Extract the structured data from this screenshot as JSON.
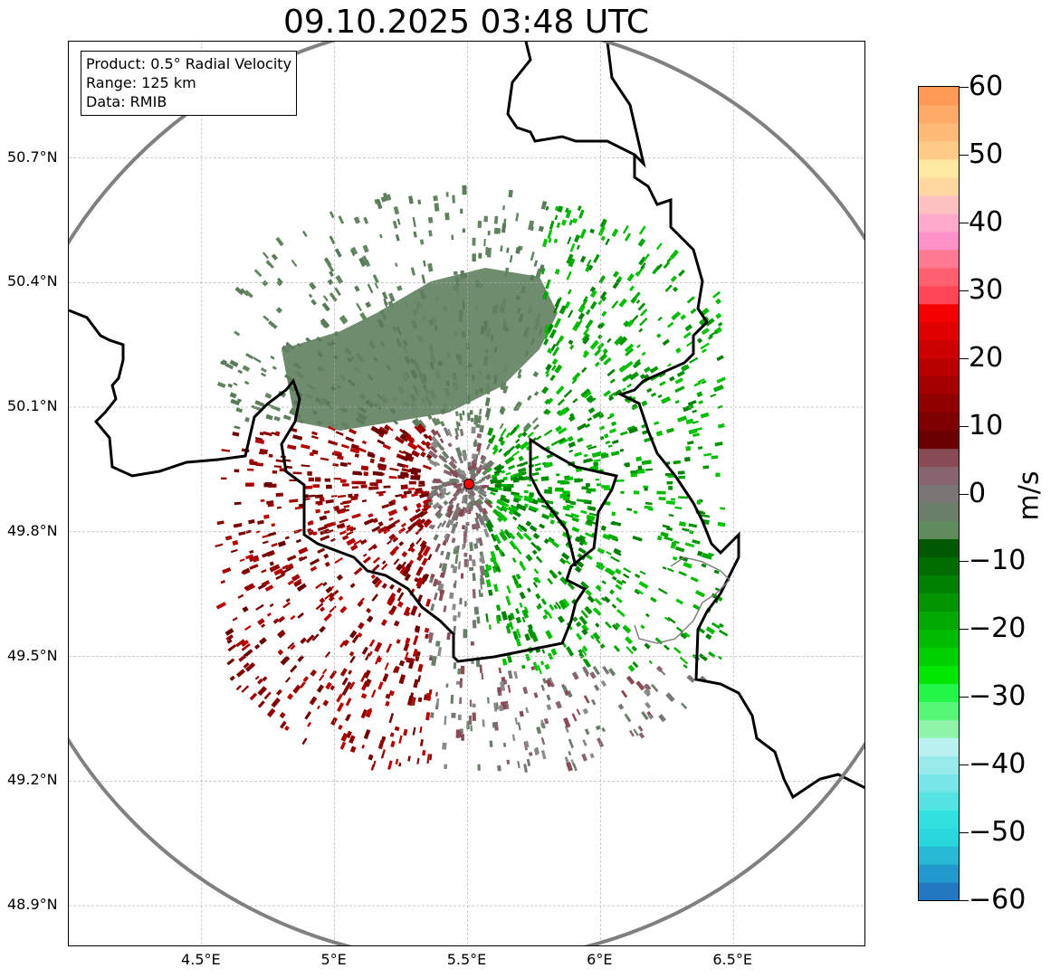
{
  "title": "09.10.2025 03:48 UTC",
  "info_box": {
    "product": "Product: 0.5° Radial Velocity",
    "range": "Range: 125 km",
    "data": "Data: RMIB"
  },
  "map": {
    "lon_range": [
      4.0,
      7.0
    ],
    "lat_range": [
      48.8,
      50.98
    ],
    "lat_ticks": [
      {
        "value": 50.7,
        "label": "50.7°N"
      },
      {
        "value": 50.4,
        "label": "50.4°N"
      },
      {
        "value": 50.1,
        "label": "50.1°N"
      },
      {
        "value": 49.8,
        "label": "49.8°N"
      },
      {
        "value": 49.5,
        "label": "49.5°N"
      },
      {
        "value": 49.2,
        "label": "49.2°N"
      },
      {
        "value": 48.9,
        "label": "48.9°N"
      }
    ],
    "lon_ticks": [
      {
        "value": 4.5,
        "label": "4.5°E"
      },
      {
        "value": 5.0,
        "label": "5°E"
      },
      {
        "value": 5.5,
        "label": "5.5°E"
      },
      {
        "value": 6.0,
        "label": "6°E"
      },
      {
        "value": 6.5,
        "label": "6.5°E"
      }
    ],
    "radar_site": {
      "lon": 5.505,
      "lat": 49.915,
      "color": "#ff0000"
    },
    "range_ring_color": "#808080",
    "border_color": "#000000"
  },
  "colorbar": {
    "min": -60,
    "max": 60,
    "unit": "m/s",
    "ticks": [
      {
        "value": 60,
        "label": "60"
      },
      {
        "value": 50,
        "label": "50"
      },
      {
        "value": 40,
        "label": "40"
      },
      {
        "value": 30,
        "label": "30"
      },
      {
        "value": 20,
        "label": "20"
      },
      {
        "value": 10,
        "label": "10"
      },
      {
        "value": 0,
        "label": "0"
      },
      {
        "value": -10,
        "label": "−10"
      },
      {
        "value": -20,
        "label": "−20"
      },
      {
        "value": -30,
        "label": "−30"
      },
      {
        "value": -40,
        "label": "−40"
      },
      {
        "value": -50,
        "label": "−50"
      },
      {
        "value": -60,
        "label": "−60"
      }
    ],
    "colors": [
      "#1f78c0",
      "#2299cc",
      "#26b8d4",
      "#2ad7dc",
      "#33e0e0",
      "#55e2e2",
      "#77e6e6",
      "#99eaea",
      "#bbf0f0",
      "#8ef5a8",
      "#55f575",
      "#22f545",
      "#00e600",
      "#00d000",
      "#00bb00",
      "#00a800",
      "#009400",
      "#008000",
      "#006c00",
      "#005800",
      "#5e8a5e",
      "#6a7f6a",
      "#7a7676",
      "#866470",
      "#884a55",
      "#6b0000",
      "#7e0000",
      "#900000",
      "#a40000",
      "#b80000",
      "#cc0000",
      "#e00000",
      "#f50000",
      "#ff4455",
      "#ff6070",
      "#ff7a90",
      "#ff90c8",
      "#ffaacc",
      "#ffc0c0",
      "#ffd8a0",
      "#ffe8a0",
      "#ffcc88",
      "#ffbb77",
      "#ffaa66",
      "#ff9955"
    ]
  }
}
